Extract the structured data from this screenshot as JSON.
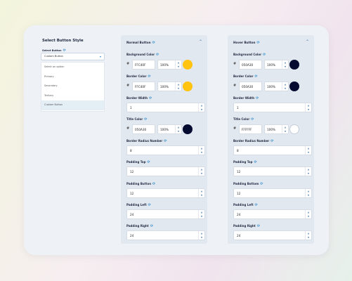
{
  "left": {
    "title": "Select Button Style",
    "select_label": "Select Button",
    "selected": "Custom Button",
    "options": [
      "Select an option",
      "Primary",
      "Secondary",
      "Tertiary",
      "Custom Button"
    ],
    "selected_index": 4
  },
  "normal": {
    "title": "Normal Button",
    "bg_label": "Background Color",
    "bg_hex": "FFC40F",
    "bg_opacity": "100%",
    "bg_color": "#FFC40F",
    "border_label": "Border Color",
    "border_hex": "FFC40F",
    "border_opacity": "100%",
    "border_color": "#FFC40F",
    "border_width_label": "Border Width",
    "border_width": "1",
    "title_color_label": "Title Color",
    "title_hex": "050A30",
    "title_opacity": "100%",
    "title_color": "#050A30",
    "radius_label": "Border Radius Number",
    "radius": "8",
    "pt_label": "Padding Top",
    "pt": "12",
    "pb_label": "Padding Button",
    "pb": "12",
    "pl_label": "Padding Left",
    "pl": "24",
    "pr_label": "Padding Right",
    "pr": "24"
  },
  "hover": {
    "title": "Hover Button",
    "bg_label": "Background Color",
    "bg_hex": "050A30",
    "bg_opacity": "100%",
    "bg_color": "#050A30",
    "border_label": "Border Color",
    "border_hex": "050A30",
    "border_opacity": "100%",
    "border_color": "#050A30",
    "border_width_label": "Border Width",
    "border_width": "1",
    "title_color_label": "Title Color",
    "title_hex": "FFFFFF",
    "title_opacity": "100%",
    "title_color": "#FFFFFF",
    "radius_label": "Border Radius Number",
    "radius": "8",
    "pt_label": "Padding Top",
    "pt": "12",
    "pb_label": "Padding Bottom",
    "pb": "12",
    "pl_label": "Padding Left",
    "pl": "24",
    "pr_label": "Padding Right",
    "pr": "24"
  },
  "icons": {
    "sync": "sync-icon",
    "collapse": "chevron-up-icon",
    "dropdown": "chevron-down-icon",
    "spin_up": "chevron-up-icon",
    "spin_down": "chevron-down-icon"
  }
}
